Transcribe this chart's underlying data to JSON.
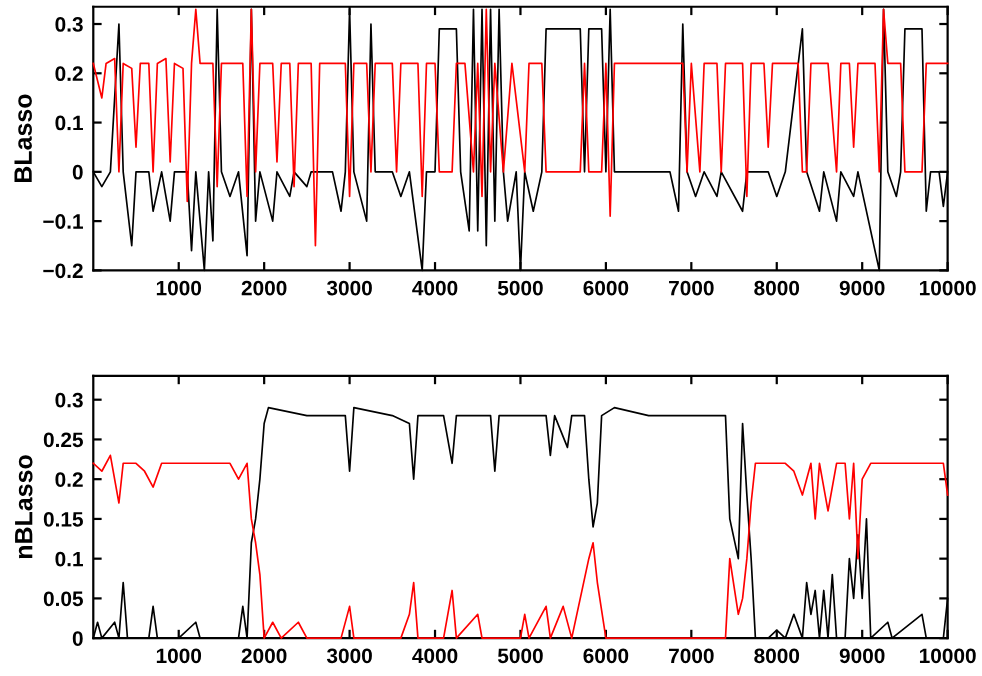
{
  "chart_data": [
    {
      "type": "line",
      "ylabel": "BLasso",
      "xlim": [
        0,
        10000
      ],
      "xticks": [
        1000,
        2000,
        3000,
        4000,
        5000,
        6000,
        7000,
        8000,
        9000,
        10000
      ],
      "ylim": [
        -0.2,
        0.335
      ],
      "yticks": [
        {
          "value": -0.2,
          "label": "−0.2"
        },
        {
          "value": -0.1,
          "label": "−0.1"
        },
        0,
        0.1,
        0.2,
        0.3
      ],
      "grid": false,
      "series": [
        {
          "color": "#000000",
          "x": [
            0,
            100,
            200,
            300,
            350,
            450,
            500,
            650,
            700,
            800,
            900,
            950,
            1100,
            1150,
            1200,
            1300,
            1350,
            1400,
            1450,
            1500,
            1600,
            1700,
            1800,
            1850,
            1900,
            1950,
            2100,
            2150,
            2300,
            2350,
            2500,
            2550,
            2800,
            2900,
            2950,
            3000,
            3050,
            3200,
            3250,
            3300,
            3500,
            3600,
            3700,
            3850,
            3900,
            4000,
            4050,
            4250,
            4300,
            4400,
            4450,
            4500,
            4550,
            4600,
            4650,
            4700,
            4750,
            4800,
            4850,
            4950,
            5000,
            5050,
            5150,
            5250,
            5300,
            5700,
            5750,
            5800,
            5950,
            6000,
            6050,
            6100,
            6200,
            6500,
            6750,
            6850,
            6900,
            6950,
            7050,
            7150,
            7300,
            7350,
            7600,
            7650,
            7900,
            8000,
            8100,
            8300,
            8350,
            8500,
            8550,
            8700,
            8750,
            8900,
            8950,
            9200,
            9250,
            9300,
            9400,
            9450,
            9500,
            9700,
            9750,
            9800,
            9900,
            9950,
            10000
          ],
          "values": [
            0.0,
            -0.03,
            0.0,
            0.3,
            0.0,
            -0.15,
            0.0,
            0.0,
            -0.08,
            0.0,
            -0.1,
            0.0,
            0.0,
            -0.16,
            0.0,
            -0.2,
            0.0,
            -0.14,
            0.33,
            0.0,
            -0.05,
            0.0,
            -0.17,
            0.33,
            -0.1,
            0.0,
            -0.1,
            0.0,
            -0.05,
            0.0,
            -0.03,
            0.0,
            0.0,
            -0.08,
            0.0,
            0.33,
            0.0,
            -0.1,
            0.3,
            0.0,
            0.0,
            -0.05,
            0.0,
            -0.2,
            0.0,
            0.0,
            0.29,
            0.29,
            0.0,
            -0.12,
            0.33,
            -0.12,
            0.33,
            -0.15,
            0.33,
            -0.1,
            0.33,
            0.0,
            -0.1,
            0.0,
            -0.2,
            0.0,
            -0.08,
            0.0,
            0.29,
            0.29,
            0.0,
            0.29,
            0.29,
            0.0,
            0.33,
            0.0,
            0.0,
            0.0,
            0.0,
            -0.08,
            0.3,
            0.0,
            -0.05,
            0.0,
            -0.05,
            0.0,
            -0.08,
            0.0,
            0.0,
            -0.05,
            0.0,
            0.29,
            0.0,
            -0.08,
            0.0,
            -0.1,
            0.0,
            -0.05,
            0.0,
            -0.2,
            0.33,
            0.0,
            -0.05,
            0.0,
            0.29,
            0.29,
            -0.08,
            0.0,
            0.0,
            -0.07,
            0.0
          ]
        },
        {
          "color": "#ff0000",
          "x": [
            0,
            100,
            150,
            250,
            300,
            350,
            450,
            500,
            550,
            650,
            700,
            750,
            850,
            900,
            950,
            1050,
            1100,
            1150,
            1200,
            1250,
            1400,
            1450,
            1500,
            1600,
            1750,
            1800,
            1850,
            1900,
            1950,
            2100,
            2150,
            2200,
            2300,
            2350,
            2400,
            2550,
            2600,
            2650,
            2800,
            2950,
            3000,
            3050,
            3200,
            3250,
            3300,
            3500,
            3550,
            3600,
            3800,
            3850,
            3900,
            4000,
            4050,
            4200,
            4250,
            4350,
            4450,
            4500,
            4550,
            4600,
            4650,
            4700,
            4800,
            4900,
            5050,
            5100,
            5250,
            5300,
            5700,
            5750,
            5800,
            5950,
            6000,
            6050,
            6100,
            6400,
            6700,
            6900,
            6950,
            7000,
            7100,
            7150,
            7300,
            7350,
            7400,
            7600,
            7650,
            7700,
            7850,
            7900,
            7950,
            8250,
            8300,
            8350,
            8400,
            8600,
            8700,
            8750,
            8850,
            8900,
            8950,
            9150,
            9200,
            9250,
            9300,
            9450,
            9500,
            9700,
            9750,
            9900,
            10000
          ],
          "values": [
            0.22,
            0.15,
            0.22,
            0.23,
            0.0,
            0.22,
            0.21,
            0.05,
            0.22,
            0.22,
            0.0,
            0.22,
            0.23,
            0.02,
            0.22,
            0.21,
            -0.06,
            0.22,
            0.33,
            0.22,
            0.22,
            -0.03,
            0.22,
            0.22,
            0.22,
            -0.05,
            0.33,
            0.0,
            0.22,
            0.22,
            0.02,
            0.22,
            0.22,
            -0.03,
            0.22,
            0.22,
            -0.15,
            0.22,
            0.22,
            0.22,
            -0.05,
            0.22,
            0.22,
            0.0,
            0.22,
            0.22,
            0.0,
            0.22,
            0.22,
            -0.05,
            0.22,
            0.22,
            0.0,
            0.0,
            0.22,
            0.22,
            0.0,
            0.22,
            -0.05,
            0.33,
            0.0,
            0.22,
            0.0,
            0.22,
            0.0,
            0.22,
            0.22,
            0.0,
            0.0,
            0.22,
            0.0,
            0.0,
            0.22,
            -0.09,
            0.22,
            0.22,
            0.22,
            0.22,
            0.0,
            0.22,
            0.0,
            0.22,
            0.22,
            0.0,
            0.22,
            0.22,
            -0.05,
            0.22,
            0.22,
            0.05,
            0.22,
            0.22,
            0.0,
            0.0,
            0.22,
            0.22,
            0.0,
            0.22,
            0.22,
            0.05,
            0.22,
            0.22,
            0.0,
            0.33,
            0.22,
            0.22,
            0.0,
            0.0,
            0.22,
            0.22,
            0.22
          ]
        }
      ]
    },
    {
      "type": "line",
      "ylabel": "nBLasso",
      "xlim": [
        0,
        10000
      ],
      "xticks": [
        1000,
        2000,
        3000,
        4000,
        5000,
        6000,
        7000,
        8000,
        9000,
        10000
      ],
      "ylim": [
        0,
        0.33
      ],
      "yticks": [
        0,
        0.05,
        0.1,
        0.15,
        0.2,
        0.25,
        0.3
      ],
      "grid": false,
      "series": [
        {
          "color": "#000000",
          "x": [
            0,
            50,
            100,
            250,
            300,
            350,
            400,
            650,
            700,
            750,
            1000,
            1200,
            1250,
            1700,
            1750,
            1800,
            1850,
            1900,
            1950,
            2000,
            2050,
            2500,
            2950,
            3000,
            3050,
            3500,
            3700,
            3750,
            3800,
            4100,
            4200,
            4250,
            4650,
            4700,
            4750,
            5300,
            5350,
            5400,
            5550,
            5600,
            5750,
            5800,
            5850,
            5900,
            5950,
            6100,
            6500,
            7000,
            7400,
            7450,
            7550,
            7600,
            7650,
            7700,
            7750,
            7900,
            8000,
            8100,
            8200,
            8300,
            8350,
            8400,
            8450,
            8500,
            8550,
            8600,
            8650,
            8700,
            8800,
            8850,
            8900,
            8950,
            9000,
            9050,
            9100,
            9300,
            9350,
            9700,
            9750,
            9950,
            10000
          ],
          "values": [
            0.0,
            0.02,
            0.0,
            0.02,
            0.0,
            0.07,
            0.0,
            0.0,
            0.04,
            0.0,
            0.0,
            0.02,
            0.0,
            0.0,
            0.04,
            0.0,
            0.12,
            0.15,
            0.2,
            0.27,
            0.29,
            0.28,
            0.28,
            0.21,
            0.29,
            0.28,
            0.27,
            0.2,
            0.28,
            0.28,
            0.22,
            0.28,
            0.28,
            0.21,
            0.28,
            0.28,
            0.23,
            0.28,
            0.24,
            0.28,
            0.28,
            0.2,
            0.14,
            0.17,
            0.28,
            0.29,
            0.28,
            0.28,
            0.28,
            0.15,
            0.1,
            0.27,
            0.18,
            0.1,
            0.0,
            0.0,
            0.01,
            0.0,
            0.03,
            0.0,
            0.07,
            0.03,
            0.06,
            0.0,
            0.06,
            0.0,
            0.08,
            0.0,
            0.0,
            0.1,
            0.05,
            0.13,
            0.05,
            0.15,
            0.0,
            0.02,
            0.0,
            0.03,
            0.0,
            0.0,
            0.05
          ]
        },
        {
          "color": "#ff0000",
          "x": [
            0,
            100,
            200,
            300,
            350,
            500,
            600,
            700,
            800,
            1000,
            1200,
            1400,
            1600,
            1700,
            1800,
            1850,
            1900,
            1950,
            2000,
            2100,
            2200,
            2400,
            2500,
            2900,
            3000,
            3050,
            3600,
            3700,
            3750,
            3800,
            4100,
            4200,
            4250,
            4500,
            4550,
            5000,
            5050,
            5100,
            5300,
            5350,
            5500,
            5600,
            5800,
            5850,
            5900,
            6000,
            6500,
            7000,
            7400,
            7450,
            7550,
            7600,
            7650,
            7700,
            7750,
            7900,
            8100,
            8200,
            8300,
            8400,
            8450,
            8500,
            8600,
            8700,
            8800,
            8850,
            8900,
            8950,
            9000,
            9100,
            9200,
            9400,
            9600,
            9800,
            9950,
            10000
          ],
          "values": [
            0.22,
            0.21,
            0.23,
            0.17,
            0.22,
            0.22,
            0.21,
            0.19,
            0.22,
            0.22,
            0.22,
            0.22,
            0.22,
            0.2,
            0.22,
            0.15,
            0.12,
            0.08,
            0.0,
            0.02,
            0.0,
            0.02,
            0.0,
            0.0,
            0.04,
            0.0,
            0.0,
            0.03,
            0.07,
            0.0,
            0.0,
            0.06,
            0.0,
            0.03,
            0.0,
            0.0,
            0.03,
            0.0,
            0.04,
            0.0,
            0.04,
            0.0,
            0.1,
            0.12,
            0.07,
            0.0,
            0.0,
            0.0,
            0.0,
            0.1,
            0.03,
            0.05,
            0.1,
            0.17,
            0.22,
            0.22,
            0.22,
            0.21,
            0.18,
            0.22,
            0.15,
            0.22,
            0.16,
            0.22,
            0.22,
            0.15,
            0.22,
            0.1,
            0.2,
            0.22,
            0.22,
            0.22,
            0.22,
            0.22,
            0.22,
            0.18
          ]
        }
      ]
    }
  ]
}
